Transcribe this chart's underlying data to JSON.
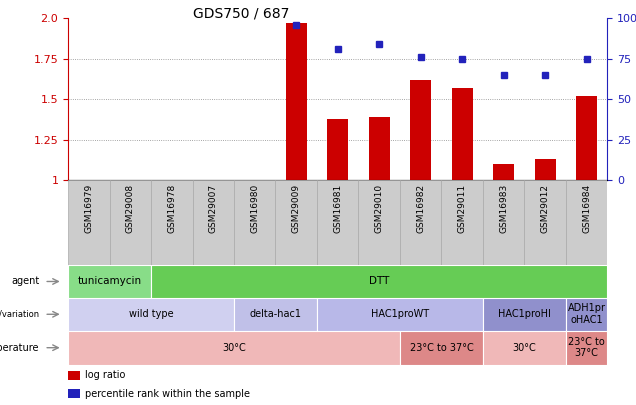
{
  "title": "GDS750 / 687",
  "samples": [
    "GSM16979",
    "GSM29008",
    "GSM16978",
    "GSM29007",
    "GSM16980",
    "GSM29009",
    "GSM16981",
    "GSM29010",
    "GSM16982",
    "GSM29011",
    "GSM16983",
    "GSM29012",
    "GSM16984"
  ],
  "log_ratio": [
    1.0,
    1.0,
    1.0,
    1.0,
    1.0,
    1.97,
    1.38,
    1.39,
    1.62,
    1.57,
    1.1,
    1.13,
    1.52
  ],
  "percentile_rank": [
    null,
    null,
    null,
    null,
    null,
    96,
    81,
    84,
    76,
    75,
    65,
    65,
    75
  ],
  "bar_color": "#cc0000",
  "dot_color": "#2222bb",
  "ylim_left": [
    1.0,
    2.0
  ],
  "ylim_right": [
    0,
    100
  ],
  "yticks_left": [
    1.0,
    1.25,
    1.5,
    1.75,
    2.0
  ],
  "yticks_right": [
    0,
    25,
    50,
    75,
    100
  ],
  "agent_groups": [
    {
      "label": "tunicamycin",
      "start": 0,
      "end": 2,
      "color": "#88dd88"
    },
    {
      "label": "DTT",
      "start": 2,
      "end": 13,
      "color": "#66cc55"
    }
  ],
  "genotype_groups": [
    {
      "label": "wild type",
      "start": 0,
      "end": 4,
      "color": "#d0d0f0"
    },
    {
      "label": "delta-hac1",
      "start": 4,
      "end": 6,
      "color": "#c0c0e8"
    },
    {
      "label": "HAC1proWT",
      "start": 6,
      "end": 10,
      "color": "#b8b8e8"
    },
    {
      "label": "HAC1proHI",
      "start": 10,
      "end": 12,
      "color": "#9090cc"
    },
    {
      "label": "ADH1pr\noHAC1",
      "start": 12,
      "end": 13,
      "color": "#9090cc"
    }
  ],
  "temperature_groups": [
    {
      "label": "30°C",
      "start": 0,
      "end": 8,
      "color": "#f0b8b8"
    },
    {
      "label": "23°C to 37°C",
      "start": 8,
      "end": 10,
      "color": "#dd8888"
    },
    {
      "label": "30°C",
      "start": 10,
      "end": 12,
      "color": "#f0b8b8"
    },
    {
      "label": "23°C to\n37°C",
      "start": 12,
      "end": 13,
      "color": "#dd8888"
    }
  ],
  "legend_items": [
    {
      "color": "#cc0000",
      "label": "log ratio"
    },
    {
      "color": "#2222bb",
      "label": "percentile rank within the sample"
    }
  ],
  "grid_dotted_values": [
    1.25,
    1.5,
    1.75
  ],
  "grid_color": "#888888",
  "sample_bg_color": "#cccccc",
  "sample_border_color": "#aaaaaa"
}
